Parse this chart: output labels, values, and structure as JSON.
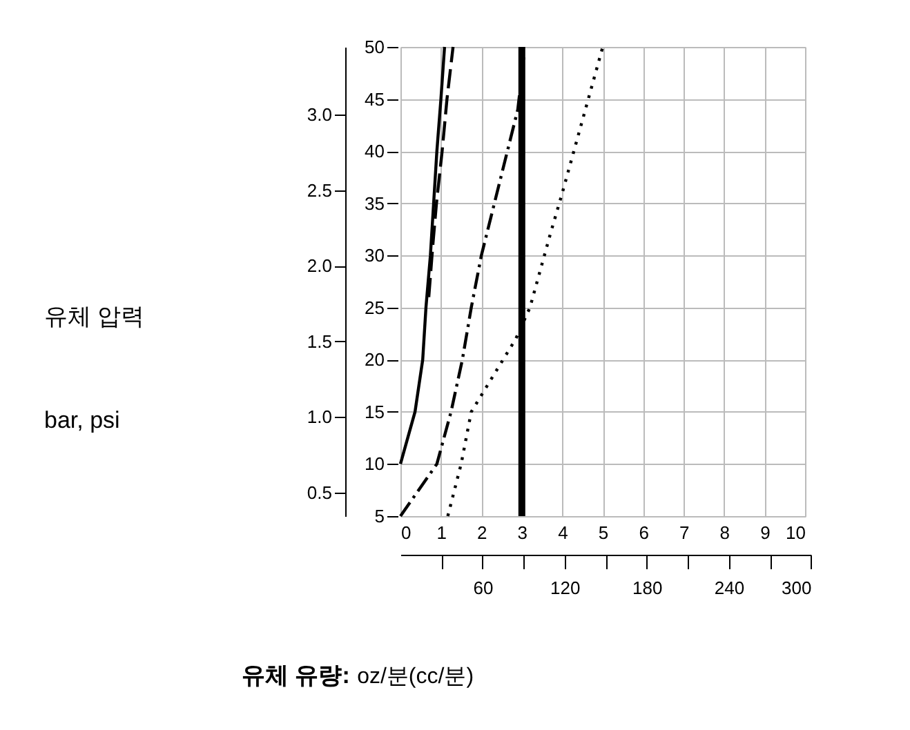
{
  "chart_data": {
    "type": "line",
    "ylabel": "유체 압력\nbar, psi",
    "xlabel": "유체 유량: oz/분(cc/분)",
    "series": [
      {
        "color": "#000000",
        "line_style": "solid",
        "x": [
          0,
          0.36,
          0.55,
          0.63,
          0.74,
          0.82,
          0.9,
          1.0,
          1.09
        ],
        "values": [
          10,
          15,
          20,
          25,
          30,
          35,
          40,
          45,
          50
        ]
      },
      {
        "color": "#000000",
        "line_style": "dashed",
        "x": [
          0.7,
          0.8,
          0.89,
          1.03,
          1.15,
          1.3
        ],
        "values": [
          26,
          31,
          35,
          40,
          45,
          50
        ]
      },
      {
        "color": "#000000",
        "line_style": "dashdot",
        "x": [
          0,
          0.9,
          1.25,
          1.53,
          1.75,
          2.0,
          2.45,
          2.9,
          3.05
        ],
        "values": [
          5,
          10,
          15,
          20,
          25,
          30,
          37,
          44,
          49
        ]
      },
      {
        "color": "#000000",
        "line_style": "dotted",
        "x": [
          1.17,
          1.5,
          1.75,
          2.3,
          2.85,
          3.2,
          3.7,
          4.0,
          4.5,
          5.0
        ],
        "values": [
          5,
          10,
          15,
          18.5,
          22,
          25,
          32,
          36,
          43,
          50
        ]
      }
    ],
    "ref_lines": [
      {
        "axis": "x",
        "value": 3,
        "color": "#000000"
      }
    ],
    "xlim": [
      0,
      10
    ],
    "xticks": [
      0,
      1,
      2,
      3,
      4,
      5,
      6,
      7,
      8,
      9,
      10
    ],
    "x2lim": [
      0,
      300
    ],
    "x2ticks": [
      {
        "value": 30,
        "label": null
      },
      60,
      {
        "value": 90,
        "label": null
      },
      120,
      {
        "value": 150,
        "label": null
      },
      180,
      {
        "value": 210,
        "label": null
      },
      240,
      {
        "value": 270,
        "label": null
      },
      300
    ],
    "ylim": [
      5,
      50
    ],
    "yticks": [
      5,
      10,
      15,
      20,
      25,
      30,
      35,
      40,
      45,
      50
    ],
    "y2lim": [
      0.345,
      3.448
    ],
    "y2ticks": [
      0.5,
      {
        "value": 1,
        "label": "1.0"
      },
      1.5,
      {
        "value": 2,
        "label": "2.0"
      },
      2.5,
      {
        "value": 3,
        "label": "3.0"
      }
    ],
    "grid": true
  }
}
